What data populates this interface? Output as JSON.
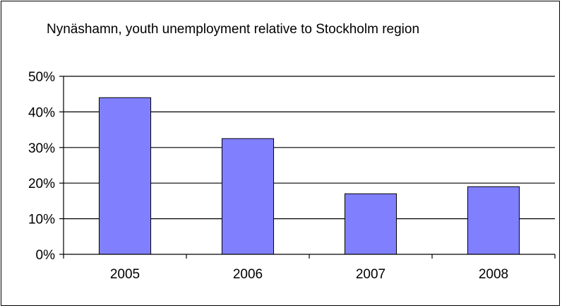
{
  "chart_data": {
    "type": "bar",
    "title": "Nynäshamn, youth unemployment relative to Stockholm region",
    "categories": [
      "2005",
      "2006",
      "2007",
      "2008"
    ],
    "values": [
      0.44,
      0.325,
      0.17,
      0.19
    ],
    "ylim": [
      0,
      0.5
    ],
    "yticks": [
      0,
      0.1,
      0.2,
      0.3,
      0.4,
      0.5
    ],
    "ytick_labels": [
      "0%",
      "10%",
      "20%",
      "30%",
      "40%",
      "50%"
    ],
    "xlabel": "",
    "ylabel": "",
    "grid": true,
    "legend": "none",
    "colors": {
      "bar": "#8080ff",
      "bar_edge": "#000000",
      "grid": "#000000",
      "background": "#ffffff"
    }
  }
}
